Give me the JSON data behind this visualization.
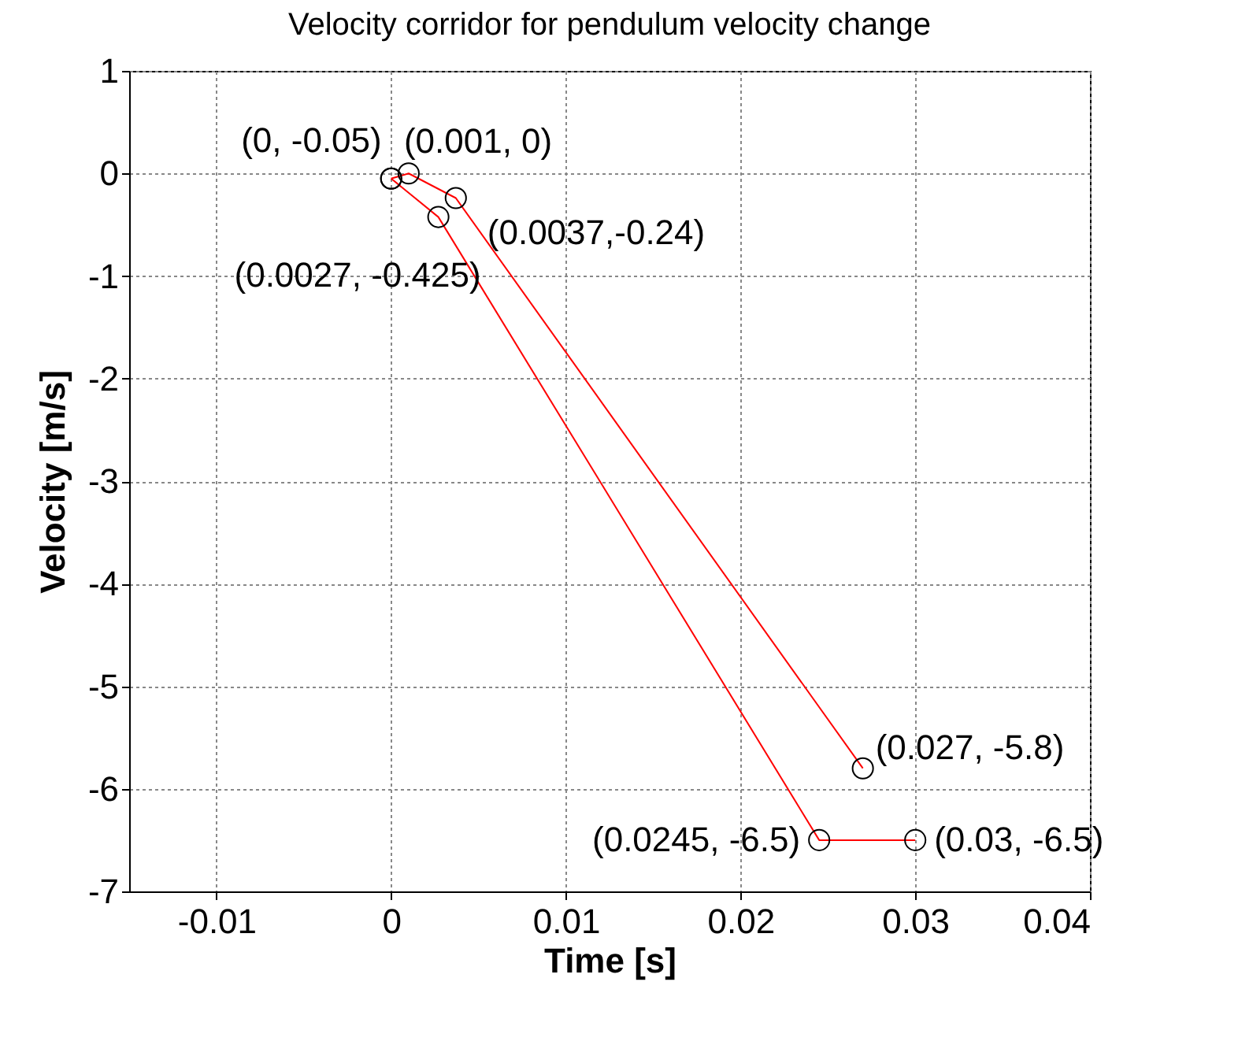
{
  "chart_data": {
    "type": "line",
    "title": "Velocity corridor for pendulum velocity change",
    "xlabel": "Time [s]",
    "ylabel": "Velocity [m/s]",
    "xlim": [
      -0.015,
      0.04
    ],
    "xticks": [
      -0.01,
      0,
      0.01,
      0.02,
      0.03,
      0.04
    ],
    "ylim": [
      -7,
      1
    ],
    "yticks": [
      -7,
      -6,
      -5,
      -4,
      -3,
      -2,
      -1,
      0,
      1
    ],
    "grid": true,
    "marker": "circle",
    "line_style": "solid",
    "series": [
      {
        "color": "#ff0000",
        "x": [
          0,
          0.001,
          0.0037,
          0.027
        ],
        "values": [
          -0.05,
          0,
          -0.24,
          -5.8
        ]
      },
      {
        "color": "#ff0000",
        "x": [
          0,
          0.0027,
          0.0245,
          0.03
        ],
        "values": [
          -0.05,
          -0.425,
          -6.5,
          -6.5
        ]
      }
    ],
    "annotations": [
      {
        "text": "(0, -0.05)",
        "x": 0,
        "y": -0.05
      },
      {
        "text": "(0.001, 0)",
        "x": 0.001,
        "y": 0
      },
      {
        "text": "(0.0037,-0.24)",
        "x": 0.0037,
        "y": -0.24
      },
      {
        "text": "(0.0027, -0.425)",
        "x": 0.0027,
        "y": -0.425
      },
      {
        "text": "(0.027, -5.8)",
        "x": 0.027,
        "y": -5.8
      },
      {
        "text": "(0.0245, -6.5)",
        "x": 0.0245,
        "y": -6.5
      },
      {
        "text": "(0.03, -6.5)",
        "x": 0.03,
        "y": -6.5
      }
    ]
  }
}
